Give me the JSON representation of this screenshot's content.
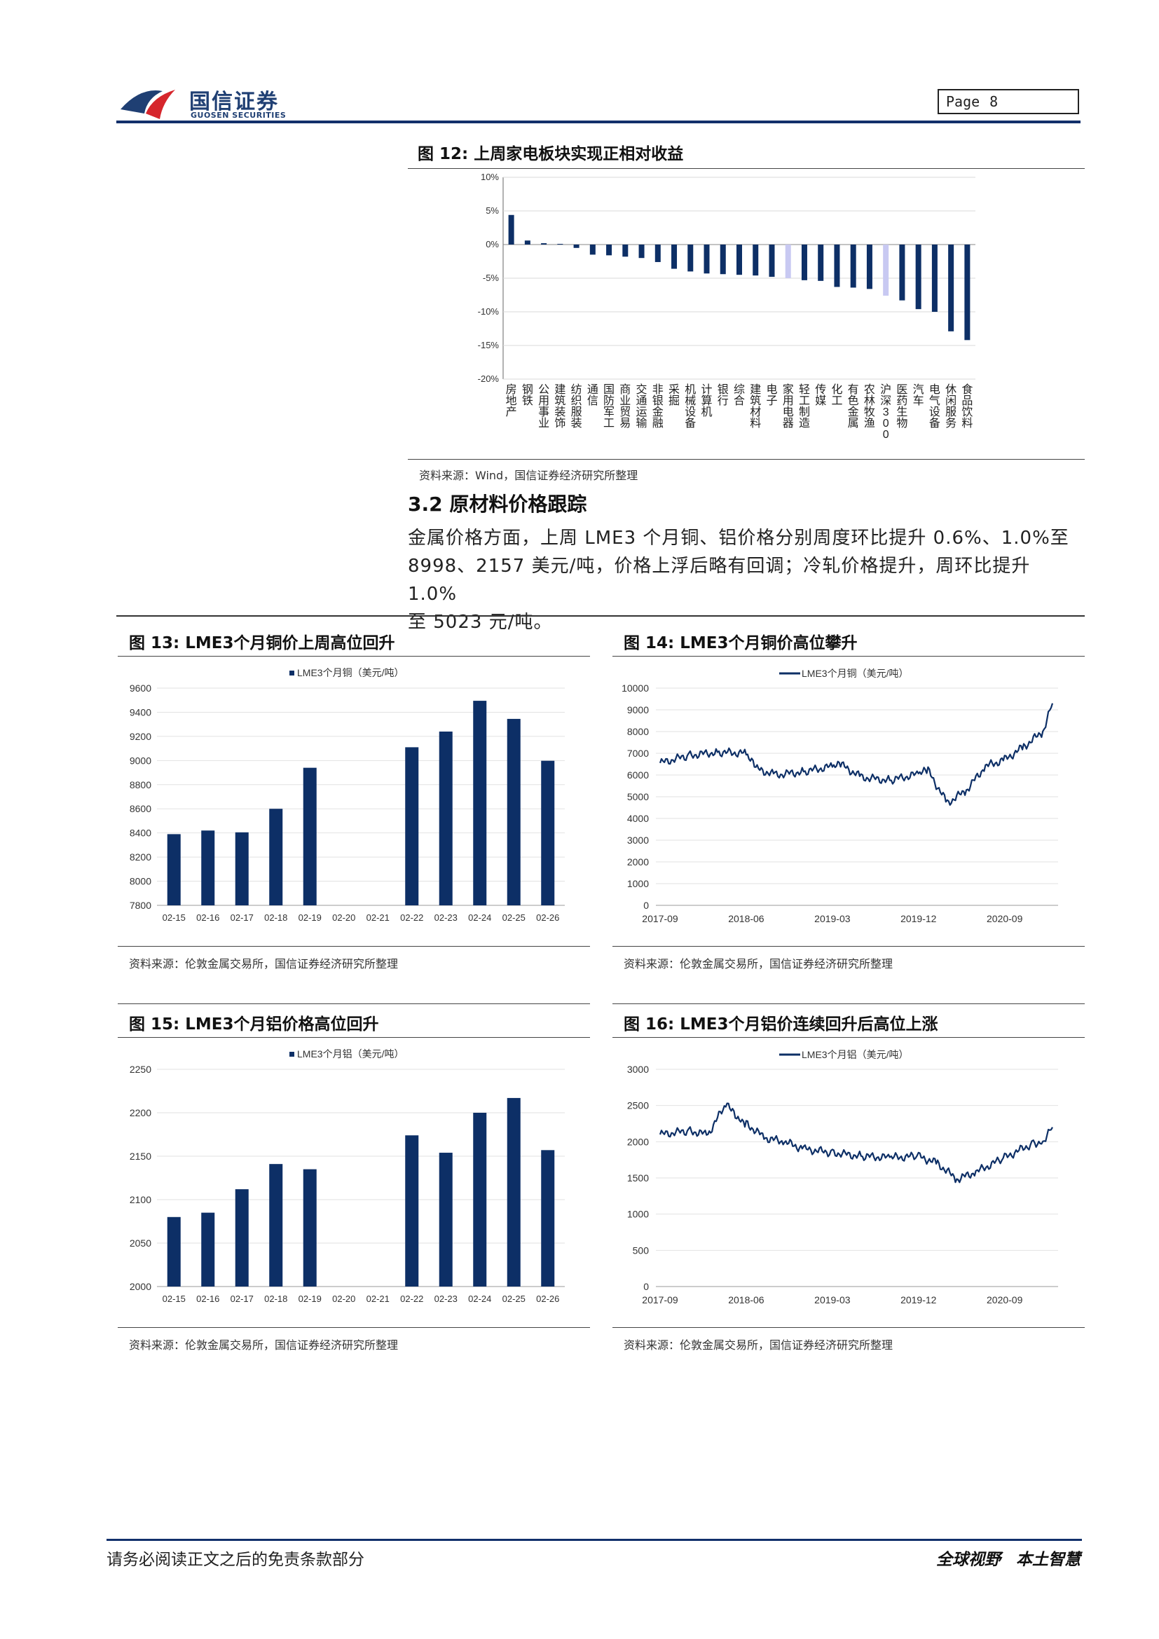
{
  "header": {
    "logo_cn": "国信证券",
    "logo_en": "GUOSEN SECURITIES",
    "page_label": "Page",
    "page_number": "8"
  },
  "colors": {
    "navy": "#12306b",
    "bar": "#0d2f66",
    "highlight": "#c8c9f2",
    "logo_red": "#d6262c"
  },
  "fig12": {
    "title": "图 12:  上周家电板块实现正相对收益",
    "source": "资料来源：Wind，国信证券经济研究所整理",
    "chart_data": {
      "type": "bar",
      "yticks": [
        "10%",
        "5%",
        "0%",
        "-5%",
        "-10%",
        "-15%",
        "-20%"
      ],
      "ylim": [
        -20,
        10
      ],
      "categories": [
        "房地产",
        "钢铁",
        "公用事业",
        "建筑装饰",
        "纺织服装",
        "通信",
        "国防军工",
        "商业贸易",
        "交通运输",
        "非银金融",
        "采掘",
        "机械设备",
        "计算机",
        "银行",
        "综合",
        "建筑材料",
        "电子",
        "家用电器",
        "轻工制造",
        "传媒",
        "化工",
        "有色金属",
        "农林牧渔",
        "沪深300",
        "医药生物",
        "汽车",
        "电气设备",
        "休闲服务",
        "食品饮料"
      ],
      "values": [
        4.4,
        0.6,
        0.2,
        0.1,
        -0.5,
        -1.5,
        -1.6,
        -1.8,
        -2.0,
        -2.6,
        -3.6,
        -4.0,
        -4.3,
        -4.4,
        -4.5,
        -4.6,
        -4.8,
        -5.0,
        -5.3,
        -5.4,
        -6.3,
        -6.4,
        -6.6,
        -7.6,
        -8.3,
        -9.6,
        -10.0,
        -12.9,
        -14.2
      ],
      "highlighted": [
        "家用电器",
        "沪深300"
      ]
    }
  },
  "section": {
    "title": "3.2 原材料价格跟踪",
    "lines": [
      "金属价格方面，上周 LME3 个月铜、铝价格分别周度环比提升 0.6%、1.0%至",
      "8998、2157 美元/吨，价格上浮后略有回调；冷轧价格提升，周环比提升 1.0%",
      "至 5023 元/吨。"
    ]
  },
  "fig13": {
    "title": "图 13:  LME3个月铜价上周高位回升",
    "source": "资料来源：伦敦金属交易所，国信证券经济研究所整理",
    "chart_data": {
      "type": "bar",
      "legend": "LME3个月铜（美元/吨）",
      "yticks": [
        "9600",
        "9400",
        "9200",
        "9000",
        "8800",
        "8600",
        "8400",
        "8200",
        "8000",
        "7800"
      ],
      "ylim": [
        7800,
        9600
      ],
      "categories": [
        "02-15",
        "02-16",
        "02-17",
        "02-18",
        "02-19",
        "02-20",
        "02-21",
        "02-22",
        "02-23",
        "02-24",
        "02-25",
        "02-26"
      ],
      "values": [
        8390,
        8420,
        8405,
        8600,
        8940,
        null,
        null,
        9110,
        9240,
        9495,
        9345,
        8998
      ]
    }
  },
  "fig14": {
    "title": "图 14:  LME3个月铜价高位攀升",
    "source": "资料来源：伦敦金属交易所，国信证券经济研究所整理",
    "chart_data": {
      "type": "line",
      "legend": "LME3个月铜（美元/吨）",
      "yticks": [
        "10000",
        "9000",
        "8000",
        "7000",
        "6000",
        "5000",
        "4000",
        "3000",
        "2000",
        "1000",
        "0"
      ],
      "ylim": [
        0,
        10000
      ],
      "xticks": [
        "2017-09",
        "2018-06",
        "2019-03",
        "2019-12",
        "2020-09"
      ],
      "x": [
        "2017-09",
        "2017-12",
        "2018-03",
        "2018-06",
        "2018-07",
        "2018-09",
        "2018-12",
        "2019-03",
        "2019-04",
        "2019-06",
        "2019-09",
        "2019-12",
        "2020-01",
        "2020-03",
        "2020-05",
        "2020-07",
        "2020-09",
        "2020-11",
        "2021-01",
        "2021-02"
      ],
      "values": [
        6550,
        6900,
        7050,
        7000,
        6300,
        6000,
        6150,
        6400,
        6450,
        5900,
        5750,
        6050,
        6200,
        4700,
        5300,
        6400,
        6700,
        7300,
        8000,
        9300
      ]
    }
  },
  "fig15": {
    "title": "图 15:  LME3个月铝价格高位回升",
    "source": "资料来源：伦敦金属交易所，国信证券经济研究所整理",
    "chart_data": {
      "type": "bar",
      "legend": "LME3个月铝（美元/吨）",
      "yticks": [
        "2250",
        "2200",
        "2150",
        "2100",
        "2050",
        "2000"
      ],
      "ylim": [
        2000,
        2250
      ],
      "categories": [
        "02-15",
        "02-16",
        "02-17",
        "02-18",
        "02-19",
        "02-20",
        "02-21",
        "02-22",
        "02-23",
        "02-24",
        "02-25",
        "02-26"
      ],
      "values": [
        2080,
        2085,
        2112,
        2141,
        2135,
        null,
        null,
        2174,
        2154,
        2200,
        2217,
        2157
      ]
    }
  },
  "fig16": {
    "title": "图 16:  LME3个月铝价连续回升后高位上涨",
    "source": "资料来源：伦敦金属交易所，国信证券经济研究所整理",
    "chart_data": {
      "type": "line",
      "legend": "LME3个月铝（美元/吨）",
      "yticks": [
        "3000",
        "2500",
        "2000",
        "1500",
        "1000",
        "500",
        "0"
      ],
      "ylim": [
        0,
        3000
      ],
      "xticks": [
        "2017-09",
        "2018-06",
        "2019-03",
        "2019-12",
        "2020-09"
      ],
      "x": [
        "2017-09",
        "2017-12",
        "2018-02",
        "2018-04",
        "2018-05",
        "2018-06",
        "2018-08",
        "2018-10",
        "2018-12",
        "2019-03",
        "2019-06",
        "2019-09",
        "2019-12",
        "2020-02",
        "2020-04",
        "2020-06",
        "2020-09",
        "2020-12",
        "2021-01",
        "2021-02"
      ],
      "values": [
        2100,
        2150,
        2100,
        2550,
        2300,
        2250,
        2050,
        2000,
        1900,
        1850,
        1800,
        1780,
        1800,
        1700,
        1480,
        1580,
        1780,
        1980,
        2000,
        2200
      ]
    }
  },
  "footer": {
    "left": "请务必阅读正文之后的免责条款部分",
    "right": "全球视野  本土智慧"
  }
}
